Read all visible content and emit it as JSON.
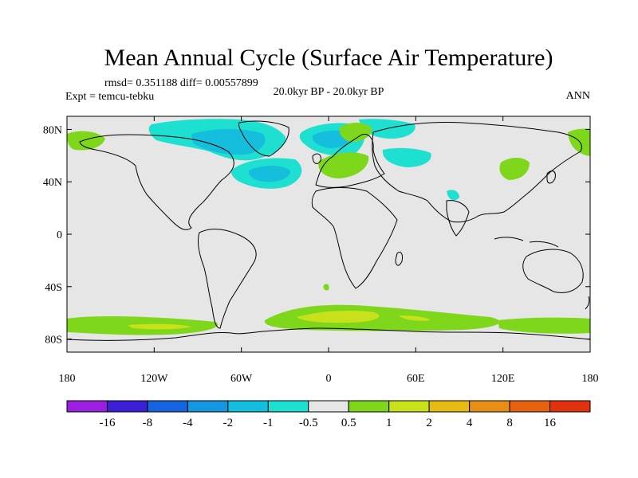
{
  "title": "Mean Annual Cycle (Surface Air Temperature)",
  "stats_line": "rmsd= 0.351188 diff= 0.00557899",
  "expt_label": "Expt = temcu-tebku",
  "period_label": "20.0kyr BP - 20.0kyr BP",
  "season_label": "ANN",
  "map": {
    "type": "contour-map",
    "lon_range": [
      -180,
      180
    ],
    "lat_range": [
      -90,
      90
    ],
    "lat_ticks": [
      {
        "value": 80,
        "label": "80N"
      },
      {
        "value": 40,
        "label": "40N"
      },
      {
        "value": 0,
        "label": "0"
      },
      {
        "value": -40,
        "label": "40S"
      },
      {
        "value": -80,
        "label": "80S"
      }
    ],
    "lon_ticks": [
      {
        "value": -180,
        "label": "180"
      },
      {
        "value": -120,
        "label": "120W"
      },
      {
        "value": -60,
        "label": "60W"
      },
      {
        "value": 0,
        "label": "0"
      },
      {
        "value": 60,
        "label": "60E"
      },
      {
        "value": 120,
        "label": "120E"
      },
      {
        "value": 180,
        "label": "180"
      }
    ],
    "background_color": "#e6e6e6"
  },
  "colorbar": {
    "colors": [
      "#9b1fe0",
      "#3b1fd6",
      "#1464e0",
      "#1496e0",
      "#14bedc",
      "#1ee0d0",
      "#e6e6e6",
      "#7ed71a",
      "#c7e11a",
      "#e6bb14",
      "#e68f14",
      "#e6620f",
      "#e0320f"
    ],
    "labels": [
      "-16",
      "-8",
      "-4",
      "-2",
      "-1",
      "-0.5",
      "0.5",
      "1",
      "2",
      "4",
      "8",
      "16"
    ]
  },
  "chart_data": {
    "type": "heatmap",
    "title": "Mean Annual Cycle (Surface Air Temperature)",
    "variable": "Surface Air Temperature",
    "experiment": "temcu-tebku",
    "period": "20.0kyr BP - 20.0kyr BP",
    "season": "ANN",
    "rmsd": 0.351188,
    "diff": 0.00557899,
    "levels": [
      -16,
      -8,
      -4,
      -2,
      -1,
      -0.5,
      0.5,
      1,
      2,
      4,
      8,
      16
    ],
    "xlim": [
      -180,
      180
    ],
    "ylim": [
      -90,
      90
    ],
    "regions": [
      {
        "area": "North Atlantic / Labrador Sea",
        "value_range": [
          -2,
          -0.5
        ]
      },
      {
        "area": "Barents / Norwegian Sea",
        "value_range": [
          -2,
          -0.5
        ]
      },
      {
        "area": "Europe",
        "value_range": [
          0.5,
          1
        ]
      },
      {
        "area": "NW Canada / Alaska coast",
        "value_range": [
          0.5,
          1
        ]
      },
      {
        "area": "East Siberia / NE Asia",
        "value_range": [
          0.5,
          1
        ]
      },
      {
        "area": "Southern Ocean (60S band)",
        "value_range": [
          0.5,
          2
        ]
      }
    ]
  }
}
